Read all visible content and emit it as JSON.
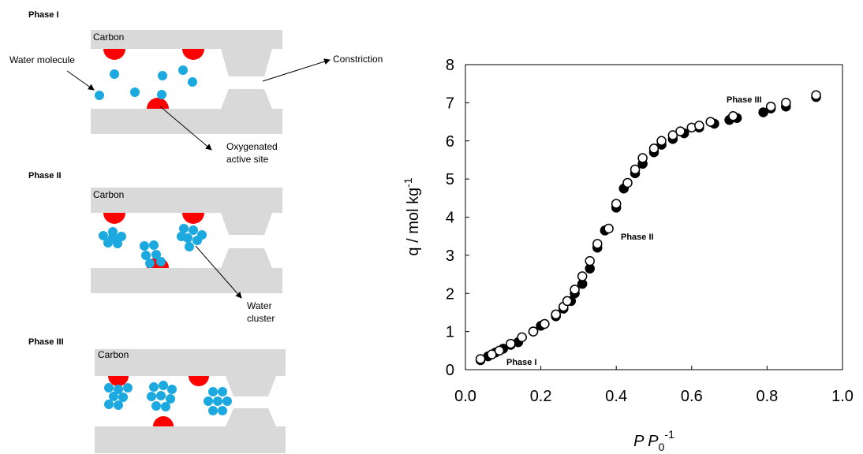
{
  "diagram": {
    "panels": [
      {
        "title": "Phase I",
        "material": "Carbon",
        "labels": [
          "Water molecule",
          "Constriction",
          "Oxygenated",
          "active site"
        ]
      },
      {
        "title": "Phase II",
        "material": "Carbon",
        "labels": [
          "Water",
          "cluster"
        ]
      },
      {
        "title": "Phase III",
        "material": "Carbon",
        "labels": []
      }
    ]
  },
  "chart_data": {
    "type": "scatter",
    "ylabel": {
      "text": "q / mol kg",
      "sup": "-1"
    },
    "xlabel": {
      "base": "P P",
      "sub": "0",
      "sup": "-1"
    },
    "annotations": [
      "Phase I",
      "Phase II",
      "Phase III"
    ],
    "xlim": [
      0,
      1
    ],
    "xticks": [
      {
        "value": 0,
        "label": "0.0"
      },
      0.2,
      0.4,
      0.6,
      0.8,
      {
        "value": 1,
        "label": "1.0"
      }
    ],
    "ylim": [
      0,
      8
    ],
    "yticks": [
      0,
      1,
      2,
      3,
      4,
      5,
      6,
      7,
      8
    ],
    "series": [
      {
        "color": "#000000",
        "x": [
          0.04,
          0.06,
          0.08,
          0.1,
          0.12,
          0.14,
          0.18,
          0.2,
          0.24,
          0.26,
          0.28,
          0.29,
          0.31,
          0.33,
          0.35,
          0.37,
          0.4,
          0.42,
          0.45,
          0.47,
          0.5,
          0.52,
          0.55,
          0.58,
          0.62,
          0.66,
          0.7,
          0.72,
          0.79,
          0.81,
          0.85,
          0.93
        ],
        "values": [
          0.25,
          0.35,
          0.45,
          0.55,
          0.65,
          0.72,
          1.0,
          1.15,
          1.4,
          1.6,
          1.8,
          2.0,
          2.25,
          2.65,
          3.2,
          3.65,
          4.25,
          4.75,
          5.15,
          5.4,
          5.7,
          5.9,
          6.05,
          6.2,
          6.35,
          6.45,
          6.55,
          6.6,
          6.75,
          6.85,
          6.9,
          7.15
        ]
      },
      {
        "color": "#ffffff",
        "x": [
          0.04,
          0.07,
          0.09,
          0.12,
          0.15,
          0.18,
          0.21,
          0.24,
          0.26,
          0.27,
          0.29,
          0.31,
          0.33,
          0.35,
          0.38,
          0.4,
          0.43,
          0.45,
          0.47,
          0.5,
          0.52,
          0.55,
          0.57,
          0.6,
          0.62,
          0.65,
          0.71,
          0.81,
          0.85,
          0.93
        ],
        "values": [
          0.28,
          0.4,
          0.5,
          0.68,
          0.85,
          1.0,
          1.2,
          1.45,
          1.65,
          1.8,
          2.1,
          2.45,
          2.85,
          3.3,
          3.7,
          4.35,
          4.9,
          5.25,
          5.55,
          5.8,
          6.0,
          6.15,
          6.25,
          6.35,
          6.4,
          6.5,
          6.65,
          6.9,
          7.0,
          7.2
        ]
      }
    ]
  }
}
